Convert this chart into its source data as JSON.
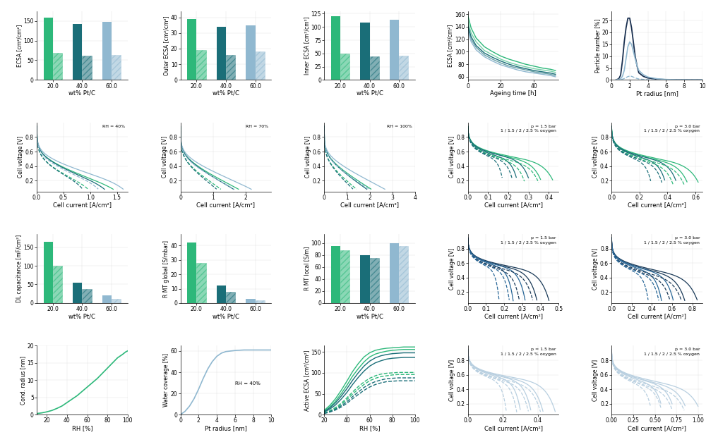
{
  "colors": {
    "green": "#2db87a",
    "teal": "#1a6e78",
    "blue": "#4a8ab0",
    "light_blue": "#90b8d0",
    "very_light_blue": "#b8cfe0"
  },
  "bar_groups": {
    "ecsa": {
      "wt": [
        20.0,
        40.0,
        60.0
      ],
      "solid": [
        158,
        142,
        148
      ],
      "hatched": [
        68,
        61,
        64
      ],
      "colors": [
        "#2db87a",
        "#1a6e78",
        "#90b8d0"
      ]
    },
    "outer_ecsa": {
      "wt": [
        20.0,
        40.0,
        60.0
      ],
      "solid": [
        39,
        34,
        35
      ],
      "hatched": [
        19,
        16,
        18
      ],
      "colors": [
        "#2db87a",
        "#1a6e78",
        "#90b8d0"
      ]
    },
    "inner_ecsa": {
      "wt": [
        20.0,
        40.0,
        60.0
      ],
      "solid": [
        120,
        108,
        113
      ],
      "hatched": [
        50,
        45,
        46
      ],
      "colors": [
        "#2db87a",
        "#1a6e78",
        "#90b8d0"
      ]
    },
    "dl_cap": {
      "wt": [
        20.0,
        40.0,
        60.0
      ],
      "solid": [
        165,
        55,
        20
      ],
      "hatched": [
        100,
        38,
        12
      ],
      "colors": [
        "#2db87a",
        "#1a6e78",
        "#90b8d0"
      ]
    },
    "r_mt_global": {
      "wt": [
        20.0,
        40.0,
        60.0
      ],
      "solid": [
        42,
        12,
        3
      ],
      "hatched": [
        28,
        8,
        2
      ],
      "colors": [
        "#2db87a",
        "#1a6e78",
        "#90b8d0"
      ]
    },
    "r_mt_local": {
      "wt": [
        20.0,
        40.0,
        60.0
      ],
      "solid": [
        95,
        80,
        100
      ],
      "hatched": [
        88,
        75,
        95
      ],
      "colors": [
        "#2db87a",
        "#1a6e78",
        "#90b8d0"
      ]
    }
  },
  "ecsa_ageing": {
    "x": [
      0,
      2,
      5,
      10,
      15,
      20,
      25,
      30,
      35,
      40,
      45,
      50,
      53
    ],
    "curves": [
      {
        "y": [
          158,
          138,
          122,
          108,
          100,
          93,
          88,
          84,
          80,
          77,
          74,
          72,
          70
        ],
        "color": "#2db87a",
        "alpha": 1.0
      },
      {
        "y": [
          148,
          130,
          116,
          102,
          95,
          88,
          83,
          79,
          76,
          73,
          71,
          69,
          67
        ],
        "color": "#2db87a",
        "alpha": 0.65
      },
      {
        "y": [
          142,
          124,
          110,
          98,
          91,
          85,
          80,
          76,
          73,
          70,
          68,
          66,
          64
        ],
        "color": "#1a6e78",
        "alpha": 1.0
      },
      {
        "y": [
          138,
          120,
          107,
          95,
          88,
          82,
          77,
          74,
          71,
          68,
          66,
          64,
          62
        ],
        "color": "#1a6e78",
        "alpha": 0.65
      },
      {
        "y": [
          133,
          116,
          103,
          92,
          85,
          79,
          75,
          71,
          68,
          66,
          64,
          62,
          60
        ],
        "color": "#90b8d0",
        "alpha": 1.0
      }
    ]
  },
  "pt_radius_dist": {
    "x": [
      0.5,
      0.8,
      1.0,
      1.2,
      1.4,
      1.6,
      1.8,
      2.0,
      2.2,
      2.4,
      2.6,
      2.8,
      3.0,
      3.5,
      4.0,
      5.0,
      6.0,
      7.0,
      8.0,
      10.0
    ],
    "initial": [
      0,
      0.5,
      2,
      8,
      16,
      22,
      26,
      26,
      22,
      16,
      10,
      6,
      3,
      1.5,
      0.8,
      0.3,
      0.1,
      0.05,
      0.02,
      0
    ],
    "aged_solid": [
      0,
      0.2,
      0.5,
      1.5,
      4,
      9,
      14,
      16,
      15,
      12,
      9,
      6,
      4,
      2.2,
      1.2,
      0.5,
      0.2,
      0.08,
      0.03,
      0
    ],
    "aged_dashed": [
      0,
      0.05,
      0.1,
      0.3,
      0.6,
      1.0,
      1.4,
      1.6,
      1.5,
      1.2,
      0.9,
      0.6,
      0.4,
      0.2,
      0.1,
      0.04,
      0.01,
      0,
      0,
      0
    ]
  },
  "cond_radius": {
    "x": [
      10,
      15,
      20,
      25,
      30,
      35,
      40,
      50,
      60,
      70,
      80,
      85,
      90,
      95,
      98,
      100
    ],
    "y": [
      0.3,
      0.5,
      0.8,
      1.2,
      1.8,
      2.5,
      3.5,
      5.5,
      8.0,
      10.5,
      13.5,
      15.0,
      16.5,
      17.5,
      18.2,
      18.5
    ]
  },
  "water_coverage": {
    "x": [
      0,
      0.5,
      1.0,
      1.5,
      2.0,
      2.5,
      3.0,
      3.5,
      4.0,
      4.5,
      5.0,
      5.5,
      6.0,
      7.0,
      8.0,
      10.0
    ],
    "y_rh40": [
      0,
      3,
      8,
      15,
      24,
      34,
      43,
      50,
      55,
      58,
      59.5,
      60,
      60.5,
      61,
      61,
      61
    ]
  },
  "active_ecsa": {
    "x": [
      20,
      25,
      30,
      35,
      40,
      45,
      50,
      55,
      60,
      65,
      70,
      75,
      80,
      85,
      90,
      95,
      100
    ],
    "curves": [
      {
        "color": "#2db87a",
        "style": "solid",
        "y": [
          10,
          22,
          38,
          58,
          80,
          103,
          122,
          138,
          148,
          154,
          157,
          159,
          160,
          161,
          162,
          162,
          162
        ]
      },
      {
        "color": "#2db87a",
        "style": "solid",
        "y": [
          8,
          18,
          32,
          50,
          70,
          92,
          110,
          126,
          138,
          145,
          149,
          152,
          154,
          155,
          156,
          156,
          156
        ]
      },
      {
        "color": "#1a6e78",
        "style": "solid",
        "y": [
          7,
          16,
          28,
          44,
          62,
          82,
          100,
          116,
          128,
          136,
          141,
          144,
          146,
          147,
          148,
          148,
          148
        ]
      },
      {
        "color": "#1a6e78",
        "style": "solid",
        "y": [
          6,
          13,
          23,
          37,
          53,
          72,
          89,
          104,
          116,
          124,
          129,
          133,
          135,
          136,
          137,
          137,
          137
        ]
      },
      {
        "color": "#2db87a",
        "style": "dashed",
        "y": [
          4,
          9,
          17,
          27,
          40,
          54,
          67,
          78,
          87,
          93,
          97,
          99,
          100,
          101,
          101,
          101,
          101
        ]
      },
      {
        "color": "#2db87a",
        "style": "dashed",
        "y": [
          3.5,
          8,
          15,
          24,
          36,
          49,
          61,
          72,
          81,
          87,
          91,
          93,
          95,
          96,
          96,
          96,
          96
        ]
      },
      {
        "color": "#1a6e78",
        "style": "dashed",
        "y": [
          3,
          7,
          13,
          21,
          31,
          43,
          54,
          65,
          73,
          79,
          83,
          86,
          87,
          88,
          88,
          88,
          88
        ]
      },
      {
        "color": "#1a6e78",
        "style": "dashed",
        "y": [
          2.5,
          6,
          11,
          18,
          27,
          38,
          48,
          58,
          66,
          72,
          76,
          79,
          80,
          81,
          81,
          81,
          81
        ]
      }
    ]
  }
}
